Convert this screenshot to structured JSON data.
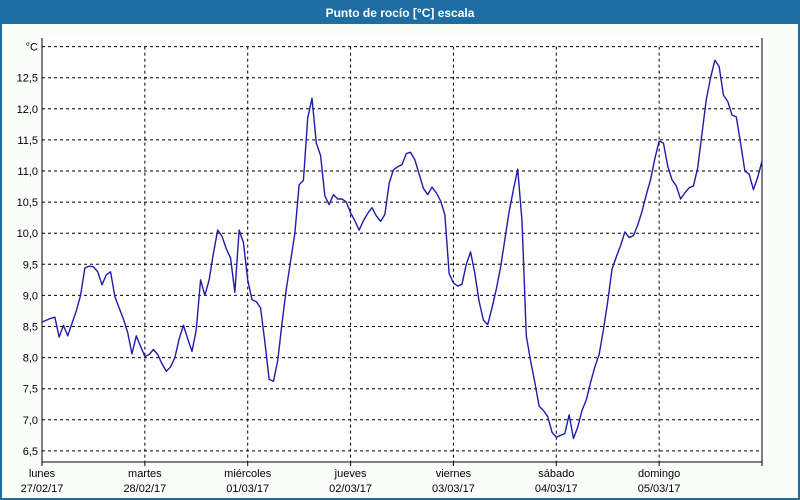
{
  "window": {
    "title": "Punto de rocío [°C] escala"
  },
  "colors": {
    "titlebar": "#1e6da3",
    "border": "#1e6da3",
    "line": "#1d1daa",
    "grid": "#000000",
    "plot_bg": "#fefefe",
    "outer_bg": "#fbfdfb"
  },
  "chart_data": {
    "type": "line",
    "title": "Punto de rocío [°C] escala",
    "ylabel_unit": "°C",
    "ylim": [
      6.5,
      13.0
    ],
    "y_tick_step": 0.5,
    "y_tick_labels": [
      "12,5",
      "12,0",
      "11,5",
      "11,0",
      "10,5",
      "10,0",
      "9,5",
      "9,0",
      "8,5",
      "8,0",
      "7,5",
      "7,0",
      "6,5"
    ],
    "grid": "dashed",
    "legend_position": "none",
    "x_days": [
      {
        "name": "lunes",
        "date": "27/02/17"
      },
      {
        "name": "martes",
        "date": "28/02/17"
      },
      {
        "name": "miércoles",
        "date": "01/03/17"
      },
      {
        "name": "jueves",
        "date": "02/03/17"
      },
      {
        "name": "viernes",
        "date": "03/03/17"
      },
      {
        "name": "sábado",
        "date": "04/03/17"
      },
      {
        "name": "domingo",
        "date": "05/03/17"
      }
    ],
    "series": [
      {
        "name": "Punto de rocío",
        "sampling": "hourly",
        "values": [
          8.57,
          8.6,
          8.63,
          8.65,
          8.33,
          8.52,
          8.35,
          8.55,
          8.75,
          9.0,
          9.44,
          9.47,
          9.46,
          9.38,
          9.17,
          9.33,
          9.38,
          8.98,
          8.8,
          8.62,
          8.4,
          8.06,
          8.35,
          8.18,
          8.02,
          8.05,
          8.13,
          8.05,
          7.9,
          7.78,
          7.85,
          8.0,
          8.3,
          8.52,
          8.3,
          8.1,
          8.45,
          9.25,
          9.0,
          9.25,
          9.68,
          10.05,
          9.95,
          9.75,
          9.6,
          9.05,
          10.05,
          9.85,
          9.25,
          8.93,
          8.9,
          8.8,
          8.25,
          7.65,
          7.62,
          7.95,
          8.55,
          9.1,
          9.55,
          10.0,
          10.78,
          10.85,
          11.85,
          12.17,
          11.45,
          11.25,
          10.6,
          10.46,
          10.62,
          10.55,
          10.55,
          10.5,
          10.33,
          10.2,
          10.05,
          10.2,
          10.32,
          10.41,
          10.28,
          10.19,
          10.3,
          10.8,
          11.02,
          11.07,
          11.1,
          11.28,
          11.3,
          11.18,
          10.95,
          10.72,
          10.62,
          10.74,
          10.65,
          10.52,
          10.3,
          9.35,
          9.2,
          9.15,
          9.18,
          9.5,
          9.7,
          9.35,
          8.9,
          8.6,
          8.53,
          8.8,
          9.1,
          9.45,
          9.9,
          10.35,
          10.7,
          11.03,
          10.2,
          8.35,
          7.95,
          7.6,
          7.22,
          7.15,
          7.05,
          6.8,
          6.72,
          6.75,
          6.78,
          7.08,
          6.7,
          6.88,
          7.15,
          7.32,
          7.6,
          7.85,
          8.05,
          8.45,
          8.9,
          9.42,
          9.62,
          9.8,
          10.02,
          9.93,
          9.96,
          10.13,
          10.35,
          10.62,
          10.86,
          11.2,
          11.48,
          11.45,
          11.08,
          10.86,
          10.76,
          10.55,
          10.65,
          10.73,
          10.76,
          11.05,
          11.6,
          12.15,
          12.5,
          12.78,
          12.68,
          12.22,
          12.12,
          11.9,
          11.87,
          11.45,
          11.0,
          10.95,
          10.7,
          10.9,
          11.16
        ]
      }
    ]
  }
}
